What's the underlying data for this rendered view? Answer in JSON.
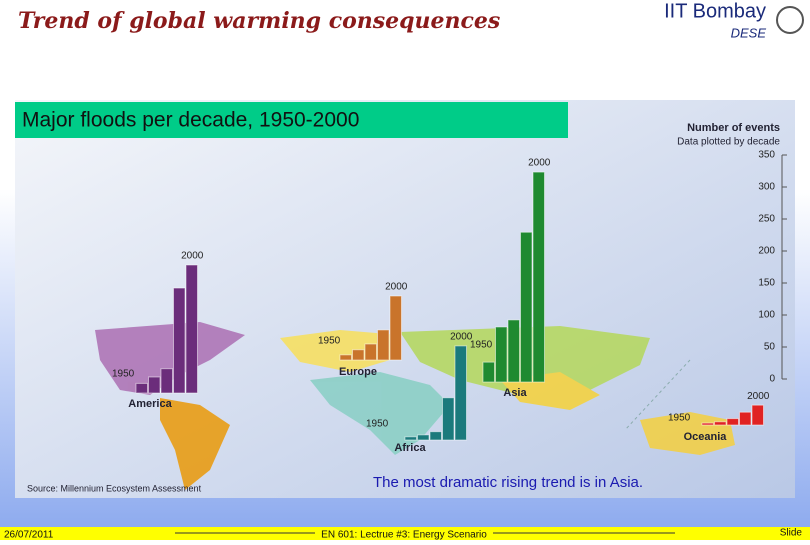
{
  "slide": {
    "title": "Trend of global warming consequences",
    "institute": "IIT Bombay",
    "department": "DESE",
    "caption": "The most dramatic rising trend is in Asia.",
    "source": "Source: Millennium Ecosystem Assessment",
    "date": "26/07/2011",
    "course": "EN 601: Lectrue #3: Energy Scenario",
    "slide_label": "Slide"
  },
  "chart_data": {
    "type": "bar",
    "title": "Major floods per decade, 1950-2000",
    "axis_title": "Number of events",
    "axis_subtitle": "Data plotted by decade",
    "ylim": [
      0,
      350
    ],
    "yticks": [
      0,
      50,
      100,
      150,
      200,
      250,
      300,
      350
    ],
    "series": [
      {
        "name": "America",
        "color": "#6b2d7b",
        "first_label": "1950",
        "last_label": "2000",
        "values": [
          15,
          25,
          38,
          164,
          200
        ]
      },
      {
        "name": "Europe",
        "color": "#c9742b",
        "first_label": "1950",
        "last_label": "2000",
        "values": [
          8,
          16,
          25,
          47,
          100
        ]
      },
      {
        "name": "Africa",
        "color": "#1b7a7c",
        "first_label": "1950",
        "last_label": "2000",
        "values": [
          5,
          8,
          13,
          66,
          147
        ]
      },
      {
        "name": "Asia",
        "color": "#1f8a30",
        "first_label": "1950",
        "last_label": "2000",
        "values": [
          31,
          86,
          97,
          234,
          328
        ]
      },
      {
        "name": "Oceania",
        "color": "#e02222",
        "first_label": "1950",
        "last_label": "2000",
        "values": [
          3,
          5,
          10,
          20,
          31
        ]
      }
    ]
  }
}
